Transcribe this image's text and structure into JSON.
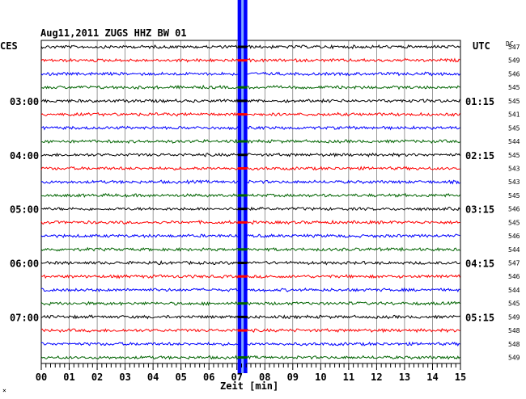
{
  "chart_data": {
    "type": "line",
    "title": "Aug11,2011   ZUGS HHZ BW 01",
    "left_label": "CES",
    "right_label": "UTC",
    "dc_label": "DC",
    "xlabel": "Zeit [min]",
    "corner_mark": "×",
    "x_ticks": [
      "00",
      "01",
      "02",
      "03",
      "04",
      "05",
      "06",
      "07",
      "08",
      "09",
      "10",
      "11",
      "12",
      "13",
      "14",
      "15"
    ],
    "xlim": [
      0,
      15
    ],
    "trace_colors": [
      "#000000",
      "#ff0000",
      "#0000ff",
      "#006400"
    ],
    "traces": 24,
    "dc_values": [
      "547",
      "549",
      "546",
      "545",
      "545",
      "541",
      "545",
      "544",
      "545",
      "543",
      "543",
      "545",
      "546",
      "545",
      "546",
      "544",
      "547",
      "546",
      "544",
      "545",
      "549",
      "548",
      "548",
      "549"
    ],
    "time_labels_left": [
      {
        "trace": 4,
        "label": "03:00"
      },
      {
        "trace": 8,
        "label": "04:00"
      },
      {
        "trace": 12,
        "label": "05:00"
      },
      {
        "trace": 16,
        "label": "06:00"
      },
      {
        "trace": 20,
        "label": "07:00"
      }
    ],
    "time_labels_right": [
      {
        "trace": 4,
        "label": "01:15"
      },
      {
        "trace": 8,
        "label": "02:15"
      },
      {
        "trace": 12,
        "label": "03:15"
      },
      {
        "trace": 16,
        "label": "04:15"
      },
      {
        "trace": 20,
        "label": "05:15"
      }
    ],
    "event": {
      "minute": 7.2,
      "note": "large signal across all traces"
    },
    "grid": true
  }
}
